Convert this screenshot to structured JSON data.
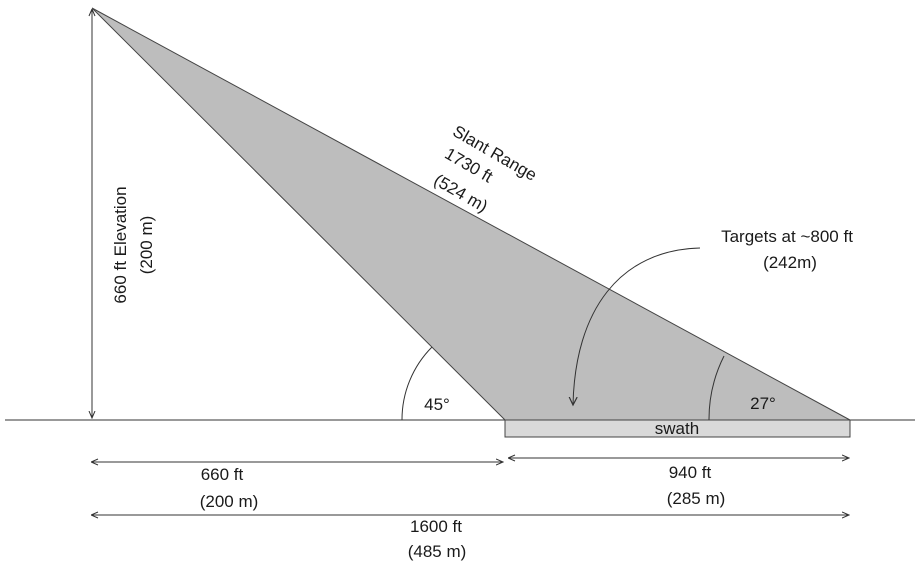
{
  "colors": {
    "beam_fill": "#bdbdbd",
    "beam_stroke": "#444444",
    "swath_fill": "#d9d9d9",
    "line": "#333333",
    "text": "#1a1a1a"
  },
  "elevation": {
    "line1": "660 ft Elevation",
    "line2": "(200 m)"
  },
  "slant_range": {
    "line1": "Slant Range",
    "line2": "1730 ft",
    "line3": "(524 m)"
  },
  "targets": {
    "line1": "Targets at ~800 ft",
    "line2": "(242m)"
  },
  "angles": {
    "near": "45°",
    "far": "27°"
  },
  "swath": {
    "label": "swath"
  },
  "dimensions": {
    "near_range": {
      "line1": "660 ft",
      "line2": "(200 m)"
    },
    "swath_width": {
      "line1": "940 ft",
      "line2": "(285 m)"
    },
    "total_range": {
      "line1": "1600 ft",
      "line2": "(485 m)"
    }
  }
}
